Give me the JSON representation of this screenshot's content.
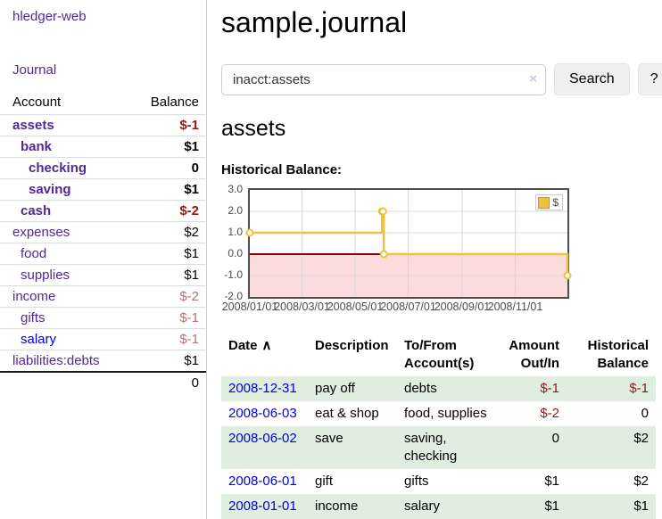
{
  "app": {
    "brand": "hledger-web",
    "nav_journal": "Journal"
  },
  "colors": {
    "link_purple": "#4f2a93",
    "link_blue": "#0000e0",
    "negative_strong": "#991408",
    "negative_soft": "#b97070",
    "table_stripe_green": "#e0eee0",
    "chart_series_gold": "#edc240",
    "chart_negative_fill": "#fbdcdc",
    "chart_zero_line": "#8b0000"
  },
  "sidebar": {
    "header": {
      "account": "Account",
      "balance": "Balance"
    },
    "accounts": [
      {
        "name": "assets",
        "balance": "$-1",
        "indent": 0,
        "bold": true,
        "neg": "strong"
      },
      {
        "name": "bank",
        "balance": "$1",
        "indent": 1,
        "bold": true,
        "neg": null
      },
      {
        "name": "checking",
        "balance": "0",
        "indent": 2,
        "bold": true,
        "neg": null
      },
      {
        "name": "saving",
        "balance": "$1",
        "indent": 2,
        "bold": true,
        "neg": null
      },
      {
        "name": "cash",
        "balance": "$-2",
        "indent": 1,
        "bold": true,
        "neg": "strong"
      },
      {
        "name": "expenses",
        "balance": "$2",
        "indent": 0,
        "bold": false,
        "neg": null
      },
      {
        "name": "food",
        "balance": "$1",
        "indent": 1,
        "bold": false,
        "neg": null
      },
      {
        "name": "supplies",
        "balance": "$1",
        "indent": 1,
        "bold": false,
        "neg": null
      },
      {
        "name": "income",
        "balance": "$-2",
        "indent": 0,
        "bold": false,
        "neg": "soft"
      },
      {
        "name": "gifts",
        "balance": "$-1",
        "indent": 1,
        "bold": false,
        "neg": "soft"
      },
      {
        "name": "salary",
        "balance": "$-1",
        "indent": 1,
        "bold": false,
        "neg": "soft",
        "blue": true
      },
      {
        "name": "liabilities:debts",
        "balance": "$1",
        "indent": 0,
        "bold": false,
        "neg": null
      }
    ],
    "total": "0"
  },
  "header": {
    "title": "sample.journal"
  },
  "search": {
    "value": "inacct:assets",
    "clear_icon": "×",
    "button": "Search",
    "help_button": "?"
  },
  "account_page": {
    "title": "assets",
    "chart_label": "Historical Balance:"
  },
  "chart_data": {
    "type": "line",
    "title": "Historical Balance:",
    "step": true,
    "series": [
      {
        "name": "$",
        "color": "#edc240",
        "points": [
          [
            "2008-01-01",
            1
          ],
          [
            "2008-06-01",
            2
          ],
          [
            "2008-06-02",
            2
          ],
          [
            "2008-06-03",
            0
          ],
          [
            "2008-12-31",
            -1
          ]
        ]
      }
    ],
    "x_domain": [
      "2008-01-01",
      "2008-12-31"
    ],
    "x_tick_labels": [
      "2008/01/01",
      "2008/03/01",
      "2008/05/01",
      "2008/07/01",
      "2008/09/01",
      "2008/11/01"
    ],
    "y_ticks": [
      3.0,
      2.0,
      1.0,
      0.0,
      -1.0,
      -2.0
    ],
    "ylim": [
      -2.0,
      3.0
    ],
    "grid": true,
    "legend_position": "top-right",
    "negative_region_fill": "#fbdcdc",
    "zero_line_color": "#8b0000"
  },
  "register": {
    "columns": [
      {
        "label": "Date",
        "sort_icon": "∧",
        "align": "left"
      },
      {
        "label": "Description",
        "align": "left"
      },
      {
        "label": "To/From Account(s)",
        "align": "left"
      },
      {
        "label": "Amount Out/In",
        "align": "right"
      },
      {
        "label": "Historical Balance",
        "align": "right"
      }
    ],
    "rows": [
      {
        "date": "2008-12-31",
        "description": "pay off",
        "accounts": "debts",
        "amount": "$-1",
        "balance": "$-1",
        "amount_neg": true,
        "balance_neg": true
      },
      {
        "date": "2008-06-03",
        "description": "eat & shop",
        "accounts": "food, supplies",
        "amount": "$-2",
        "balance": "0",
        "amount_neg": true,
        "balance_neg": false
      },
      {
        "date": "2008-06-02",
        "description": "save",
        "accounts": "saving, checking",
        "amount": "0",
        "balance": "$2",
        "amount_neg": false,
        "balance_neg": false
      },
      {
        "date": "2008-06-01",
        "description": "gift",
        "accounts": "gifts",
        "amount": "$1",
        "balance": "$2",
        "amount_neg": false,
        "balance_neg": false
      },
      {
        "date": "2008-01-01",
        "description": "income",
        "accounts": "salary",
        "amount": "$1",
        "balance": "$1",
        "amount_neg": false,
        "balance_neg": false
      }
    ]
  }
}
